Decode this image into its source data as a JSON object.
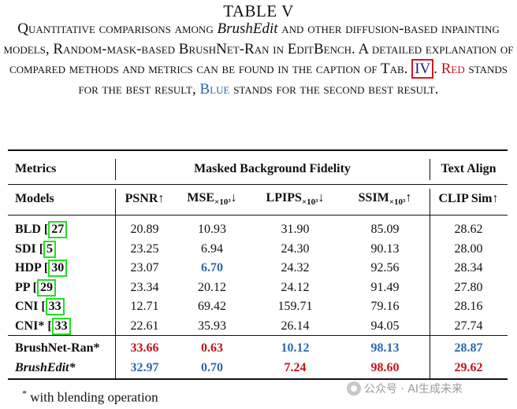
{
  "caption": {
    "label": "TABLE V",
    "line1_a": "Quantitative comparisons among ",
    "line1_b": "BrushEdit",
    "line1_c": " and other diffusion-based inpainting models, Random-mask-based BrushNet-Ran in EditBench. A detailed explanation of compared methods and metrics can be found in the caption of Tab. ",
    "ref": "IV",
    "after_ref": ". ",
    "red_word": "Red",
    "mid": " stands for the best result, ",
    "blue_word": "Blue",
    "end": " stands for the second best result."
  },
  "table": {
    "header1": {
      "metrics": "Metrics",
      "group1": "Masked Background Fidelity",
      "group2": "Text Align"
    },
    "header2": {
      "models": "Models",
      "psnr": "PSNR↑",
      "mse": "MSE",
      "mse_sub": "×10³",
      "mse_arrow": "↓",
      "lpips": "LPIPS",
      "lpips_sub": "×10³",
      "lpips_arrow": "↓",
      "ssim": "SSIM",
      "ssim_sub": "×10³",
      "ssim_arrow": "↑",
      "clip": "CLIP Sim↑"
    },
    "rows": [
      {
        "model": "BLD",
        "cite": "27",
        "psnr": "20.89",
        "mse": "10.93",
        "lpips": "31.90",
        "ssim": "85.09",
        "clip": "28.62"
      },
      {
        "model": "SDI",
        "cite": "5",
        "psnr": "23.25",
        "mse": "6.94",
        "lpips": "24.30",
        "ssim": "90.13",
        "clip": "28.00"
      },
      {
        "model": "HDP",
        "cite": "30",
        "psnr": "23.07",
        "mse": "6.70",
        "lpips": "24.32",
        "ssim": "92.56",
        "clip": "28.34"
      },
      {
        "model": "PP",
        "cite": "29",
        "psnr": "23.34",
        "mse": "20.12",
        "lpips": "24.12",
        "ssim": "91.49",
        "clip": "27.80"
      },
      {
        "model": "CNI",
        "cite": "33",
        "psnr": "12.71",
        "mse": "69.42",
        "lpips": "159.71",
        "ssim": "79.16",
        "clip": "28.16"
      },
      {
        "model": "CNI*",
        "cite": "33",
        "psnr": "22.61",
        "mse": "35.93",
        "lpips": "26.14",
        "ssim": "94.05",
        "clip": "27.74"
      },
      {
        "model": "BrushNet-Ran*",
        "psnr": "33.66",
        "mse": "0.63",
        "lpips": "10.12",
        "ssim": "98.13",
        "clip": "28.87"
      },
      {
        "model": "BrushEdit*",
        "psnr": "32.97",
        "mse": "0.70",
        "lpips": "7.24",
        "ssim": "98.60",
        "clip": "29.62"
      }
    ]
  },
  "footnote": {
    "mark": "*",
    "text": " with blending operation"
  },
  "watermark": "公众号 · AI生成未来",
  "colors": {
    "best": "#c0141b",
    "second": "#2a6aad",
    "cite_box": "#22e022",
    "ref_box": "#e0141e"
  }
}
